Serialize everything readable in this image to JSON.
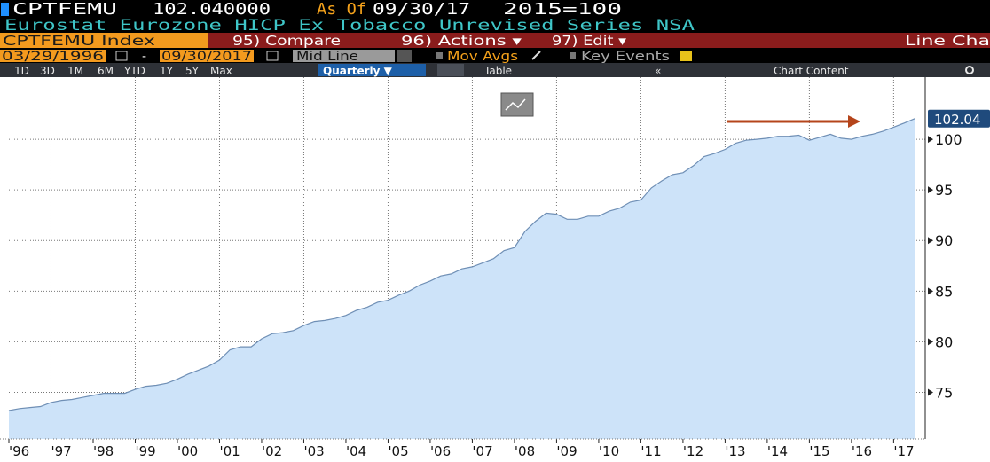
{
  "header": {
    "ticker": "CPTFEMU",
    "price": "102.040000",
    "as_of_label": "As Of",
    "as_of_date": "09/30/17",
    "base": "2015=100",
    "description": "Eurostat Eurozone HICP Ex Tobacco Unrevised Series NSA"
  },
  "menu": {
    "security": "CPTFEMU Index",
    "items": [
      "95) Compare",
      "96) Actions ▾",
      "97) Edit ▾"
    ],
    "view": "Line Cha"
  },
  "controls": {
    "start_date": "03/29/1996",
    "separator": "-",
    "end_date": "09/30/2017",
    "mode": "Mid Line",
    "mov_avgs": "Mov Avgs",
    "key_events": "Key Events"
  },
  "periods": {
    "ranges": [
      "1D",
      "3D",
      "1M",
      "6M",
      "YTD",
      "1Y",
      "5Y",
      "Max"
    ],
    "frequency": "Quarterly ▼",
    "table": "Table",
    "collapse": "«",
    "chart_content": "Chart Content"
  },
  "chart_data": {
    "type": "area",
    "color": "#cde3f9",
    "line_color": "#6f8fb5",
    "grid": true,
    "x": [
      1996,
      1996.25,
      1996.5,
      1996.75,
      1997,
      1997.25,
      1997.5,
      1997.75,
      1998,
      1998.25,
      1998.5,
      1998.75,
      1999,
      1999.25,
      1999.5,
      1999.75,
      2000,
      2000.25,
      2000.5,
      2000.75,
      2001,
      2001.25,
      2001.5,
      2001.75,
      2002,
      2002.25,
      2002.5,
      2002.75,
      2003,
      2003.25,
      2003.5,
      2003.75,
      2004,
      2004.25,
      2004.5,
      2004.75,
      2005,
      2005.25,
      2005.5,
      2005.75,
      2006,
      2006.25,
      2006.5,
      2006.75,
      2007,
      2007.25,
      2007.5,
      2007.75,
      2008,
      2008.25,
      2008.5,
      2008.75,
      2009,
      2009.25,
      2009.5,
      2009.75,
      2010,
      2010.25,
      2010.5,
      2010.75,
      2011,
      2011.25,
      2011.5,
      2011.75,
      2012,
      2012.25,
      2012.5,
      2012.75,
      2013,
      2013.25,
      2013.5,
      2013.75,
      2014,
      2014.25,
      2014.5,
      2014.75,
      2015,
      2015.25,
      2015.5,
      2015.75,
      2016,
      2016.25,
      2016.5,
      2016.75,
      2017,
      2017.25,
      2017.5
    ],
    "values": [
      73.2,
      73.4,
      73.5,
      73.6,
      74.0,
      74.2,
      74.3,
      74.5,
      74.7,
      74.9,
      74.9,
      74.9,
      75.3,
      75.6,
      75.7,
      75.9,
      76.3,
      76.8,
      77.2,
      77.6,
      78.2,
      79.2,
      79.5,
      79.5,
      80.3,
      80.8,
      80.9,
      81.1,
      81.6,
      82.0,
      82.1,
      82.3,
      82.6,
      83.1,
      83.4,
      83.9,
      84.1,
      84.6,
      85.0,
      85.6,
      86.0,
      86.5,
      86.7,
      87.2,
      87.4,
      87.8,
      88.2,
      89.0,
      89.3,
      90.9,
      91.9,
      92.7,
      92.6,
      92.1,
      92.1,
      92.4,
      92.4,
      92.9,
      93.2,
      93.8,
      94.0,
      95.2,
      95.9,
      96.5,
      96.7,
      97.4,
      98.3,
      98.6,
      99.0,
      99.6,
      99.9,
      100.0,
      100.1,
      100.3,
      100.3,
      100.4,
      99.9,
      100.2,
      100.5,
      100.1,
      100.0,
      100.3,
      100.5,
      100.8,
      101.2,
      101.6,
      102.04
    ],
    "last_value_label": "102.04",
    "xlim": [
      1996,
      2017.75
    ],
    "xticks": [
      {
        "value": 1996,
        "label": "'96"
      },
      {
        "value": 1997,
        "label": "'97"
      },
      {
        "value": 1998,
        "label": "'98"
      },
      {
        "value": 1999,
        "label": "'99"
      },
      {
        "value": 2000,
        "label": "'00"
      },
      {
        "value": 2001,
        "label": "'01"
      },
      {
        "value": 2002,
        "label": "'02"
      },
      {
        "value": 2003,
        "label": "'03"
      },
      {
        "value": 2004,
        "label": "'04"
      },
      {
        "value": 2005,
        "label": "'05"
      },
      {
        "value": 2006,
        "label": "'06"
      },
      {
        "value": 2007,
        "label": "'07"
      },
      {
        "value": 2008,
        "label": "'08"
      },
      {
        "value": 2009,
        "label": "'09"
      },
      {
        "value": 2010,
        "label": "'10"
      },
      {
        "value": 2011,
        "label": "'11"
      },
      {
        "value": 2012,
        "label": "'12"
      },
      {
        "value": 2013,
        "label": "'13"
      },
      {
        "value": 2014,
        "label": "'14"
      },
      {
        "value": 2015,
        "label": "'15"
      },
      {
        "value": 2016,
        "label": "'16"
      },
      {
        "value": 2017,
        "label": "'17"
      }
    ],
    "ylim": [
      70.4,
      105
    ],
    "yticks": [
      75,
      80,
      85,
      90,
      95,
      100
    ]
  }
}
